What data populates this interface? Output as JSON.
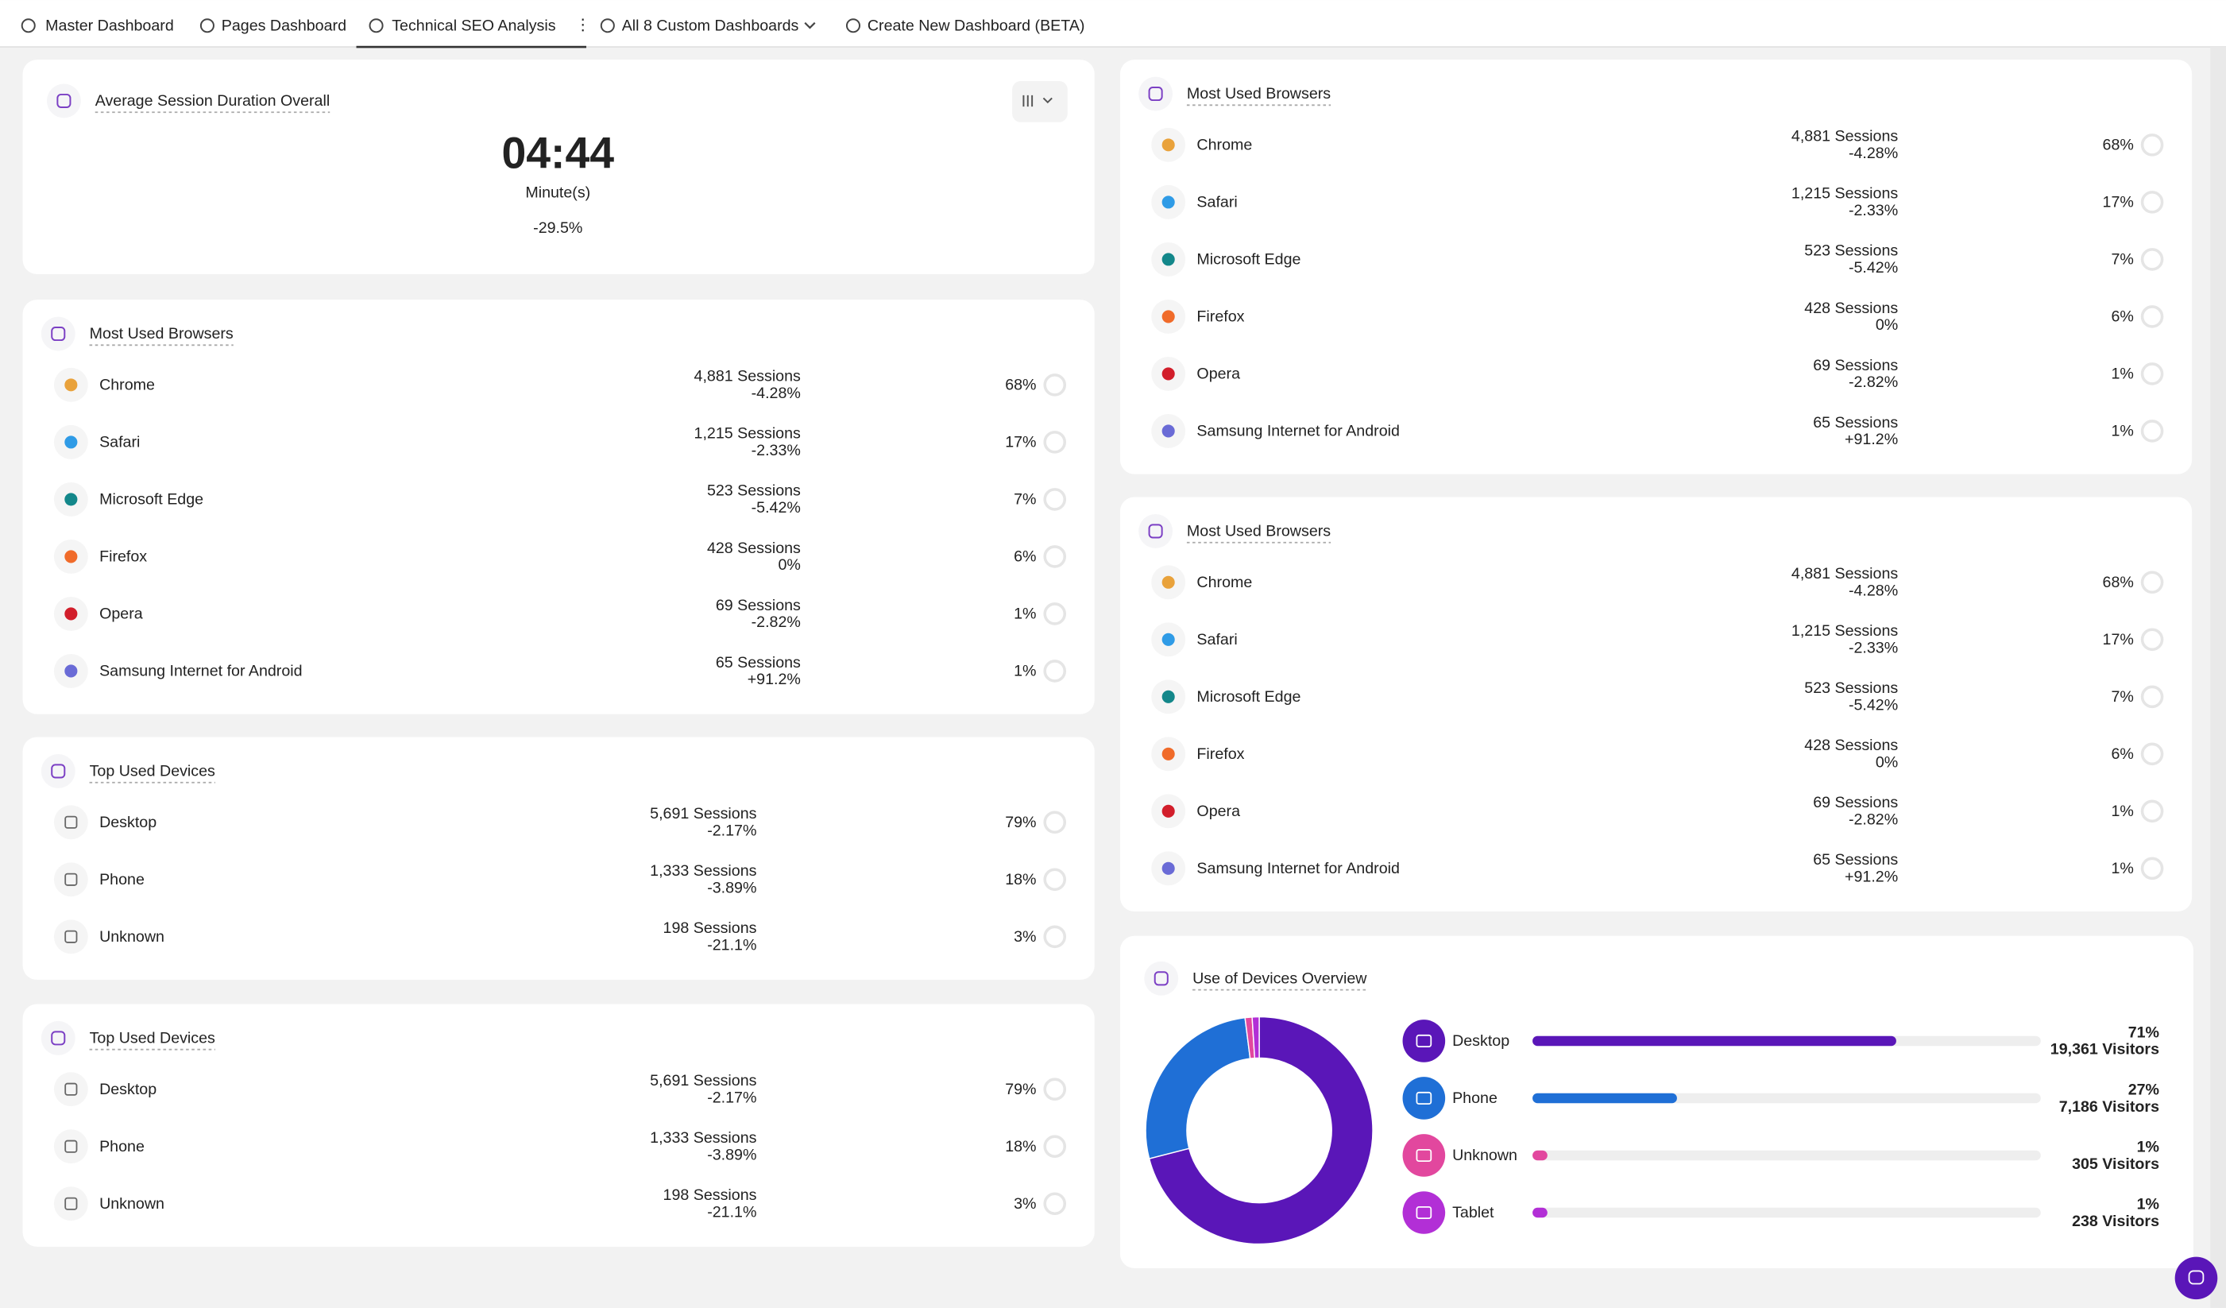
{
  "tabs": [
    "Master Dashboard",
    "Pages Dashboard",
    "Technical SEO Analysis",
    "All 8 Custom Dashboards",
    "Create New Dashboard (BETA)"
  ],
  "session_card": {
    "title": "Average Session Duration Overall",
    "value": "04:44",
    "unit": "Minute(s)",
    "change": "-29.5%"
  },
  "browser_cards": [
    {
      "title": "Most Used Browsers",
      "rows": [
        {
          "name": "Chrome",
          "sessions": "4,881 Sessions",
          "change": "-4.28%",
          "share": "68%"
        },
        {
          "name": "Safari",
          "sessions": "1,215 Sessions",
          "change": "-2.33%",
          "share": "17%"
        },
        {
          "name": "Microsoft Edge",
          "sessions": "523 Sessions",
          "change": "-5.42%",
          "share": "7%"
        },
        {
          "name": "Firefox",
          "sessions": "428 Sessions",
          "change": "0%",
          "share": "6%"
        },
        {
          "name": "Opera",
          "sessions": "69 Sessions",
          "change": "-2.82%",
          "share": "1%"
        },
        {
          "name": "Samsung Internet for Android",
          "sessions": "65 Sessions",
          "change": "+91.2%",
          "share": "1%"
        }
      ]
    },
    {
      "title": "Most Used Browsers",
      "rows": [
        {
          "name": "Chrome",
          "sessions": "4,881 Sessions",
          "change": "-4.28%",
          "share": "68%"
        },
        {
          "name": "Safari",
          "sessions": "1,215 Sessions",
          "change": "-2.33%",
          "share": "17%"
        },
        {
          "name": "Microsoft Edge",
          "sessions": "523 Sessions",
          "change": "-5.42%",
          "share": "7%"
        },
        {
          "name": "Firefox",
          "sessions": "428 Sessions",
          "change": "0%",
          "share": "6%"
        },
        {
          "name": "Opera",
          "sessions": "69 Sessions",
          "change": "-2.82%",
          "share": "1%"
        },
        {
          "name": "Samsung Internet for Android",
          "sessions": "65 Sessions",
          "change": "+91.2%",
          "share": "1%"
        }
      ]
    },
    {
      "title": "Most Used Browsers",
      "rows": [
        {
          "name": "Chrome",
          "sessions": "4,881 Sessions",
          "change": "-4.28%",
          "share": "68%"
        },
        {
          "name": "Safari",
          "sessions": "1,215 Sessions",
          "change": "-2.33%",
          "share": "17%"
        },
        {
          "name": "Microsoft Edge",
          "sessions": "523 Sessions",
          "change": "-5.42%",
          "share": "7%"
        },
        {
          "name": "Firefox",
          "sessions": "428 Sessions",
          "change": "0%",
          "share": "6%"
        },
        {
          "name": "Opera",
          "sessions": "69 Sessions",
          "change": "-2.82%",
          "share": "1%"
        },
        {
          "name": "Samsung Internet for Android",
          "sessions": "65 Sessions",
          "change": "+91.2%",
          "share": "1%"
        }
      ]
    }
  ],
  "device_cards": [
    {
      "title": "Top Used Devices",
      "rows": [
        {
          "name": "Desktop",
          "sessions": "5,691 Sessions",
          "change": "-2.17%",
          "share": "79%"
        },
        {
          "name": "Phone",
          "sessions": "1,333 Sessions",
          "change": "-3.89%",
          "share": "18%"
        },
        {
          "name": "Unknown",
          "sessions": "198 Sessions",
          "change": "-21.1%",
          "share": "3%"
        }
      ]
    },
    {
      "title": "Top Used Devices",
      "rows": [
        {
          "name": "Desktop",
          "sessions": "5,691 Sessions",
          "change": "-2.17%",
          "share": "79%"
        },
        {
          "name": "Phone",
          "sessions": "1,333 Sessions",
          "change": "-3.89%",
          "share": "18%"
        },
        {
          "name": "Unknown",
          "sessions": "198 Sessions",
          "change": "-21.1%",
          "share": "3%"
        }
      ]
    }
  ],
  "devices_overview": {
    "title": "Use of Devices Overview",
    "rows": [
      {
        "name": "Desktop",
        "share": 71,
        "share_label": "71%",
        "visitors": "19,361 Visitors",
        "color": "#5a16b8"
      },
      {
        "name": "Phone",
        "share": 27,
        "share_label": "27%",
        "visitors": "7,186 Visitors",
        "color": "#1f6fd6"
      },
      {
        "name": "Unknown",
        "share": 1,
        "share_label": "1%",
        "visitors": "305 Visitors",
        "color": "#e2479e"
      },
      {
        "name": "Tablet",
        "share": 1,
        "share_label": "1%",
        "visitors": "238 Visitors",
        "color": "#b22fd6"
      }
    ]
  }
}
